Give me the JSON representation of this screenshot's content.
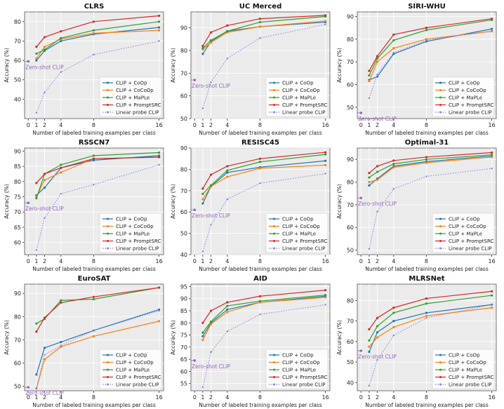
{
  "figure": {
    "xlabel": "Number of labeled training examples per class",
    "ylabel": "Accuracy (%)",
    "zero_shot_label": "Zero-shot CLIP",
    "x_ticks": [
      0,
      1,
      2,
      4,
      8,
      16
    ]
  },
  "series_style": {
    "CLIP + CoOp": {
      "color": "#1f77b4",
      "dash": false
    },
    "CLIP + CoCoOp": {
      "color": "#ff7f0e",
      "dash": false
    },
    "CLIP + MaPLe": {
      "color": "#2ca02c",
      "dash": false
    },
    "CLIP + PromptSRC": {
      "color": "#d62728",
      "dash": false
    },
    "Linear probe CLIP": {
      "color": "#8a7fe0",
      "dash": true
    }
  },
  "chart_data": [
    {
      "type": "line",
      "title": "CLRS",
      "x": [
        1,
        2,
        4,
        8,
        16
      ],
      "ylim": [
        30,
        85
      ],
      "yticks": [
        40,
        50,
        60,
        70,
        80
      ],
      "zero_shot": 59.5,
      "series": [
        {
          "name": "CLIP + CoOp",
          "values": [
            60,
            65,
            70,
            73.5,
            77
          ]
        },
        {
          "name": "CLIP + CoCoOp",
          "values": [
            61,
            67,
            71,
            74,
            75.5
          ]
        },
        {
          "name": "CLIP + MaPLe",
          "values": [
            63.5,
            65.5,
            71.5,
            75.5,
            80
          ]
        },
        {
          "name": "CLIP + PromptSRC",
          "values": [
            67,
            72,
            75,
            80,
            83
          ]
        },
        {
          "name": "Linear probe CLIP",
          "values": [
            33,
            43.5,
            54,
            63,
            70
          ]
        }
      ]
    },
    {
      "type": "line",
      "title": "UC Merced",
      "x": [
        1,
        2,
        4,
        8,
        16
      ],
      "ylim": [
        50,
        97
      ],
      "yticks": [
        50,
        60,
        70,
        80,
        90
      ],
      "zero_shot": 67,
      "series": [
        {
          "name": "CLIP + CoOp",
          "values": [
            78.5,
            84,
            88.5,
            90.5,
            92.5
          ]
        },
        {
          "name": "CLIP + CoCoOp",
          "values": [
            80.5,
            83.5,
            88,
            90.5,
            93
          ]
        },
        {
          "name": "CLIP + MaPLe",
          "values": [
            81,
            84.5,
            88.5,
            92.5,
            95
          ]
        },
        {
          "name": "CLIP + PromptSRC",
          "values": [
            82,
            88,
            91,
            94,
            95.5
          ]
        },
        {
          "name": "Linear probe CLIP",
          "values": [
            54.5,
            66,
            76.5,
            85.5,
            91.5
          ]
        }
      ]
    },
    {
      "type": "line",
      "title": "SIRI-WHU",
      "x": [
        1,
        2,
        4,
        8,
        16
      ],
      "ylim": [
        45,
        92
      ],
      "yticks": [
        50,
        60,
        70,
        80,
        90
      ],
      "zero_shot": 47.5,
      "series": [
        {
          "name": "CLIP + CoOp",
          "values": [
            62,
            63.5,
            73.5,
            79,
            84.5
          ]
        },
        {
          "name": "CLIP + CoCoOp",
          "values": [
            61.5,
            70,
            76,
            80,
            83.5
          ]
        },
        {
          "name": "CLIP + MaPLe",
          "values": [
            64,
            71.5,
            79.5,
            84,
            88.5
          ]
        },
        {
          "name": "CLIP + PromptSRC",
          "values": [
            66,
            72.5,
            82,
            85,
            89
          ]
        },
        {
          "name": "Linear probe CLIP",
          "values": [
            54,
            64.5,
            74,
            79.5,
            83.5
          ]
        }
      ]
    },
    {
      "type": "line",
      "title": "RSSCN7",
      "x": [
        1,
        2,
        4,
        8,
        16
      ],
      "ylim": [
        56,
        91
      ],
      "yticks": [
        60,
        65,
        70,
        75,
        80,
        85,
        90
      ],
      "zero_shot": 73,
      "series": [
        {
          "name": "CLIP + CoOp",
          "values": [
            75.5,
            78,
            84.5,
            87,
            88.5
          ]
        },
        {
          "name": "CLIP + CoCoOp",
          "values": [
            75,
            80.5,
            83,
            87.5,
            88
          ]
        },
        {
          "name": "CLIP + MaPLe",
          "values": [
            74.5,
            82.5,
            85.5,
            88.5,
            89.5
          ]
        },
        {
          "name": "CLIP + PromptSRC",
          "values": [
            79.5,
            82.5,
            84.5,
            87.5,
            88
          ]
        },
        {
          "name": "Linear probe CLIP",
          "values": [
            57.5,
            68,
            76,
            79,
            85.5
          ]
        }
      ]
    },
    {
      "type": "line",
      "title": "RESISC45",
      "x": [
        1,
        2,
        4,
        8,
        16
      ],
      "ylim": [
        40,
        90
      ],
      "yticks": [
        40,
        50,
        60,
        70,
        80,
        90
      ],
      "zero_shot": 61,
      "series": [
        {
          "name": "CLIP + CoOp",
          "values": [
            64,
            72,
            78.5,
            81,
            84
          ]
        },
        {
          "name": "CLIP + CoCoOp",
          "values": [
            66,
            72,
            76.5,
            80.5,
            82
          ]
        },
        {
          "name": "CLIP + MaPLe",
          "values": [
            68.5,
            72.5,
            79.5,
            83.5,
            87
          ]
        },
        {
          "name": "CLIP + PromptSRC",
          "values": [
            71,
            77.5,
            81.5,
            85,
            88
          ]
        },
        {
          "name": "Linear probe CLIP",
          "values": [
            41.5,
            54,
            66,
            73.5,
            78
          ]
        }
      ]
    },
    {
      "type": "line",
      "title": "Optimal-31",
      "x": [
        1,
        2,
        4,
        8,
        16
      ],
      "ylim": [
        48,
        95
      ],
      "yticks": [
        50,
        60,
        70,
        80,
        90
      ],
      "zero_shot": 73,
      "series": [
        {
          "name": "CLIP + CoOp",
          "values": [
            78.5,
            81.5,
            87,
            89,
            91.5
          ]
        },
        {
          "name": "CLIP + CoCoOp",
          "values": [
            80,
            81,
            86.5,
            88.5,
            91
          ]
        },
        {
          "name": "CLIP + MaPLe",
          "values": [
            82,
            84.5,
            88,
            90,
            92
          ]
        },
        {
          "name": "CLIP + PromptSRC",
          "values": [
            84,
            87,
            89.5,
            91,
            93
          ]
        },
        {
          "name": "Linear probe CLIP",
          "values": [
            50.5,
            67,
            77,
            82.5,
            86
          ]
        }
      ]
    },
    {
      "type": "line",
      "title": "EuroSAT",
      "x": [
        1,
        2,
        4,
        8,
        16
      ],
      "ylim": [
        48,
        94
      ],
      "yticks": [
        50,
        60,
        70,
        80,
        90
      ],
      "zero_shot": 49.5,
      "series": [
        {
          "name": "CLIP + CoOp",
          "values": [
            55,
            66.5,
            69,
            74,
            83
          ]
        },
        {
          "name": "CLIP + CoCoOp",
          "values": [
            49,
            61.5,
            67,
            71.5,
            78
          ]
        },
        {
          "name": "CLIP + MaPLe",
          "values": [
            77,
            79,
            87,
            87.5,
            92.5
          ]
        },
        {
          "name": "CLIP + PromptSRC",
          "values": [
            73.5,
            79.5,
            86,
            88.5,
            92.5
          ]
        },
        {
          "name": "Linear probe CLIP",
          "values": [
            49,
            63.5,
            67.5,
            74,
            82.5
          ]
        }
      ]
    },
    {
      "type": "line",
      "title": "AID",
      "x": [
        1,
        2,
        4,
        8,
        16
      ],
      "ylim": [
        52,
        96
      ],
      "yticks": [
        55,
        60,
        65,
        70,
        75,
        80,
        85,
        90,
        95
      ],
      "zero_shot": 64.5,
      "series": [
        {
          "name": "CLIP + CoOp",
          "values": [
            74.5,
            80,
            85.5,
            88.5,
            91
          ]
        },
        {
          "name": "CLIP + CoCoOp",
          "values": [
            73,
            79.5,
            84.5,
            88.5,
            90.5
          ]
        },
        {
          "name": "CLIP + MaPLe",
          "values": [
            76,
            80.5,
            87,
            89,
            91.5
          ]
        },
        {
          "name": "CLIP + PromptSRC",
          "values": [
            80,
            85,
            88.5,
            91,
            93.5
          ]
        },
        {
          "name": "Linear probe CLIP",
          "values": [
            53.5,
            68,
            76.5,
            83.5,
            87.5
          ]
        }
      ]
    },
    {
      "type": "line",
      "title": "MLRSNet",
      "x": [
        1,
        2,
        4,
        8,
        16
      ],
      "ylim": [
        36,
        88
      ],
      "yticks": [
        40,
        50,
        60,
        70,
        80
      ],
      "zero_shot": 55.5,
      "series": [
        {
          "name": "CLIP + CoOp",
          "values": [
            55,
            64.5,
            70,
            74,
            78
          ]
        },
        {
          "name": "CLIP + CoCoOp",
          "values": [
            57.5,
            62,
            67,
            72.5,
            76.5
          ]
        },
        {
          "name": "CLIP + MaPLe",
          "values": [
            60.5,
            67.5,
            74,
            78.5,
            82.5
          ]
        },
        {
          "name": "CLIP + PromptSRC",
          "values": [
            66,
            71.5,
            76.5,
            81,
            84.5
          ]
        },
        {
          "name": "Linear probe CLIP",
          "values": [
            38.5,
            51,
            63,
            71.5,
            78
          ]
        }
      ]
    }
  ]
}
